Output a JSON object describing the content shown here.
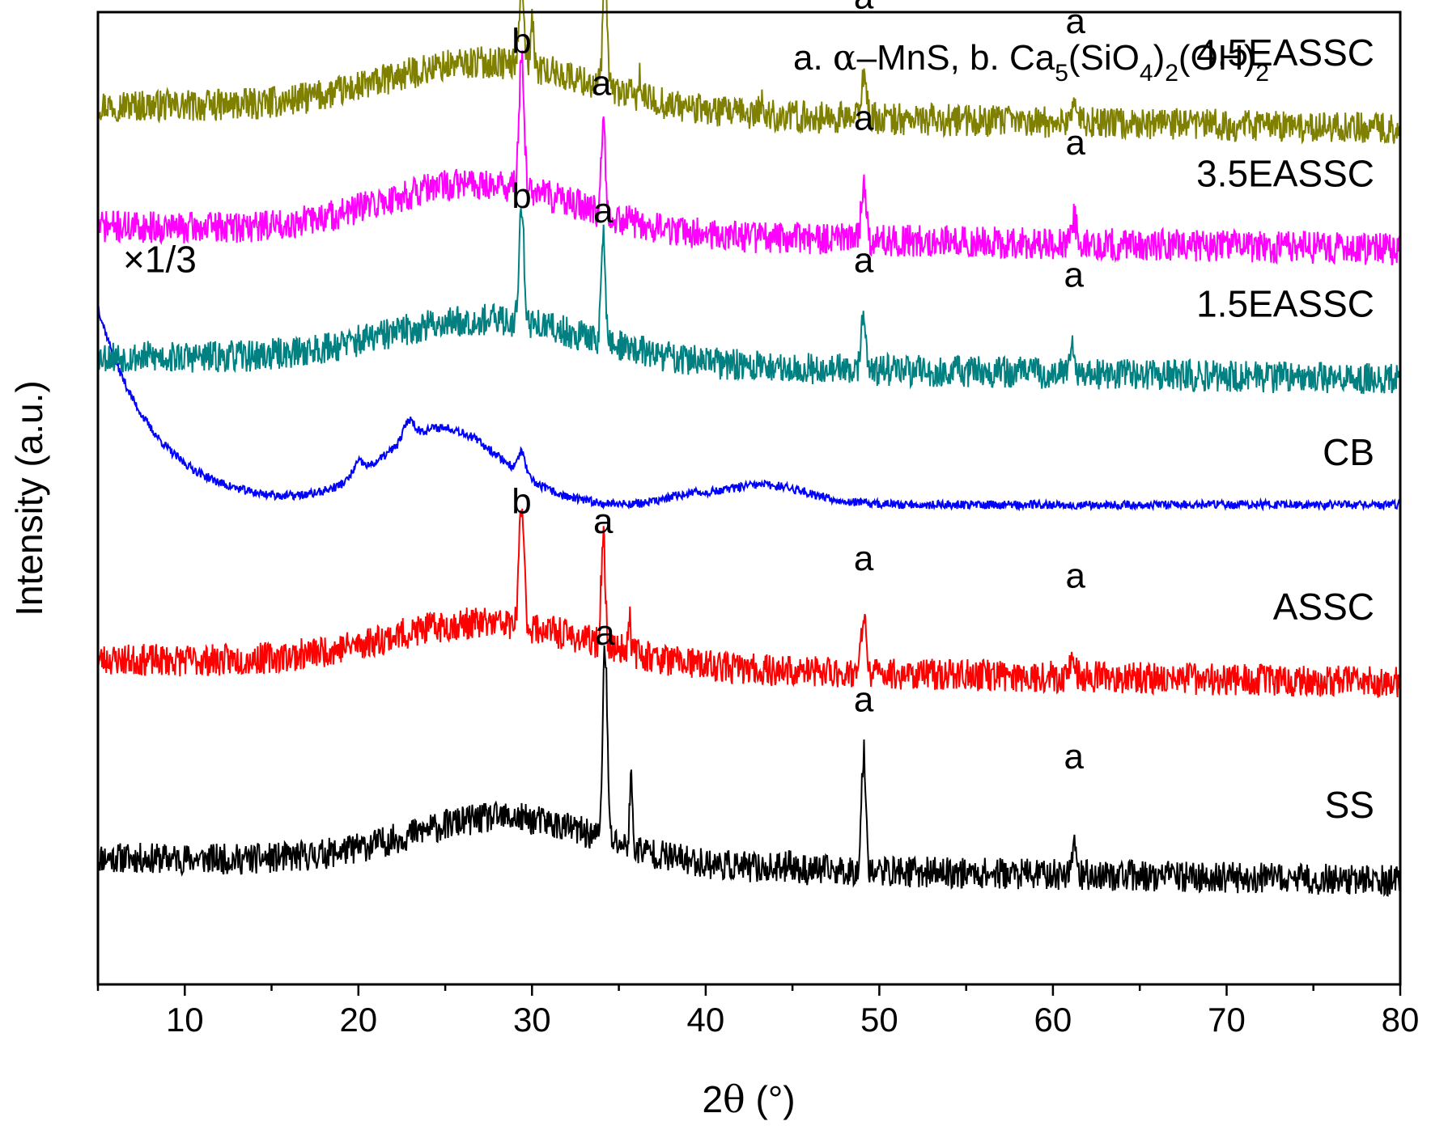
{
  "chart_data": {
    "type": "line",
    "xlabel_main": "2",
    "xlabel_theta": "θ",
    "xlabel_unit": " (°)",
    "ylabel": "Intensity (a.u.)",
    "xlim": [
      5,
      80
    ],
    "xticks": [
      10,
      20,
      30,
      40,
      50,
      60,
      70,
      80
    ],
    "xtick_labels": [
      "10",
      "20",
      "30",
      "40",
      "50",
      "60",
      "70",
      "80"
    ],
    "y_axis_ticks": false,
    "phase_legend": {
      "a_prefix": "a. ",
      "a_greek": "α",
      "a_rest": "–MnS, ",
      "b_prefix": "b. Ca",
      "sub5": "5",
      "siO": "(SiO",
      "sub4": "4",
      "close": ")",
      "sub2a": "2",
      "oh": "(OH)",
      "sub2b": "2"
    },
    "series": [
      {
        "name": "SS",
        "color": "#000000",
        "baseline": 1.0,
        "amp": 0.25,
        "seed": 11,
        "peaks": [
          [
            34.2,
            1.55,
            0.13
          ],
          [
            35.7,
            0.55,
            0.08
          ],
          [
            49.1,
            0.95,
            0.13
          ],
          [
            61.2,
            0.25,
            0.15
          ],
          [
            44.8,
            0.12,
            0.1
          ]
        ],
        "humps": [
          [
            28.5,
            0.38,
            5.5
          ]
        ],
        "marks": [
          [
            "a",
            34.2,
            1.72
          ],
          [
            "a",
            49.1,
            1.18
          ],
          [
            "a",
            61.2,
            0.72
          ]
        ]
      },
      {
        "name": "ASSC",
        "color": "#ff0000",
        "baseline": 2.6,
        "amp": 0.26,
        "seed": 23,
        "peaks": [
          [
            29.4,
            1.0,
            0.14
          ],
          [
            34.1,
            0.85,
            0.12
          ],
          [
            35.6,
            0.3,
            0.08
          ],
          [
            49.1,
            0.45,
            0.14
          ],
          [
            61.1,
            0.15,
            0.15
          ]
        ],
        "humps": [
          [
            27.5,
            0.35,
            6.0
          ]
        ],
        "marks": [
          [
            "b",
            29.4,
            1.18
          ],
          [
            "a",
            34.1,
            1.02
          ],
          [
            "a",
            49.1,
            0.72
          ],
          [
            "a",
            61.3,
            0.58
          ]
        ]
      },
      {
        "name": "CB",
        "label_prefix": "×1/3",
        "color": "#0000ff",
        "baseline": 3.85,
        "amp": 0.07,
        "seed": 37,
        "peaks": [
          [
            29.4,
            0.18,
            0.2
          ],
          [
            20.0,
            0.1,
            0.3
          ],
          [
            22.9,
            0.15,
            0.3
          ]
        ],
        "humps": [
          [
            24.8,
            0.62,
            3.4
          ],
          [
            43.3,
            0.16,
            2.6
          ],
          [
            38.8,
            0.05,
            1.2
          ]
        ],
        "decay": [
          1.6,
          3.2
        ],
        "marks": []
      },
      {
        "name": "1.5EASSC",
        "color": "#008080",
        "baseline": 5.05,
        "amp": 0.26,
        "seed": 53,
        "peaks": [
          [
            29.4,
            0.95,
            0.14
          ],
          [
            34.1,
            0.85,
            0.12
          ],
          [
            49.1,
            0.45,
            0.14
          ],
          [
            61.1,
            0.18,
            0.15
          ],
          [
            65.0,
            0.08,
            0.1
          ]
        ],
        "humps": [
          [
            27.5,
            0.35,
            6.0
          ]
        ],
        "marks": [
          [
            "b",
            29.4,
            1.2
          ],
          [
            "a",
            34.1,
            1.08
          ],
          [
            "a",
            49.1,
            0.68
          ],
          [
            "a",
            61.2,
            0.56
          ]
        ]
      },
      {
        "name": "3.5EASSC",
        "color": "#ff00ff",
        "baseline": 6.1,
        "amp": 0.26,
        "seed": 71,
        "peaks": [
          [
            29.4,
            1.1,
            0.14
          ],
          [
            34.1,
            0.75,
            0.12
          ],
          [
            49.1,
            0.45,
            0.14
          ],
          [
            61.2,
            0.2,
            0.18
          ]
        ],
        "humps": [
          [
            27.0,
            0.4,
            5.5
          ]
        ],
        "marks": [
          [
            "b",
            29.4,
            1.4
          ],
          [
            "a",
            34.0,
            1.06
          ],
          [
            "a",
            49.1,
            0.78
          ],
          [
            "a",
            61.3,
            0.58
          ]
        ]
      },
      {
        "name": "4.5EASSC",
        "color": "#808000",
        "baseline": 7.08,
        "amp": 0.26,
        "seed": 97,
        "peaks": [
          [
            29.4,
            0.7,
            0.14
          ],
          [
            30.0,
            0.35,
            0.1
          ],
          [
            34.2,
            0.95,
            0.12
          ],
          [
            36.2,
            0.15,
            0.08
          ],
          [
            49.1,
            0.38,
            0.14
          ],
          [
            61.2,
            0.18,
            0.15
          ],
          [
            43.2,
            0.1,
            0.12
          ]
        ],
        "humps": [
          [
            27.5,
            0.4,
            6.0
          ]
        ],
        "marks": [
          [
            "b",
            29.4,
            1.22
          ],
          [
            "a",
            34.2,
            1.54
          ],
          [
            "a",
            49.1,
            0.78
          ],
          [
            "a",
            61.3,
            0.58
          ]
        ]
      }
    ]
  }
}
